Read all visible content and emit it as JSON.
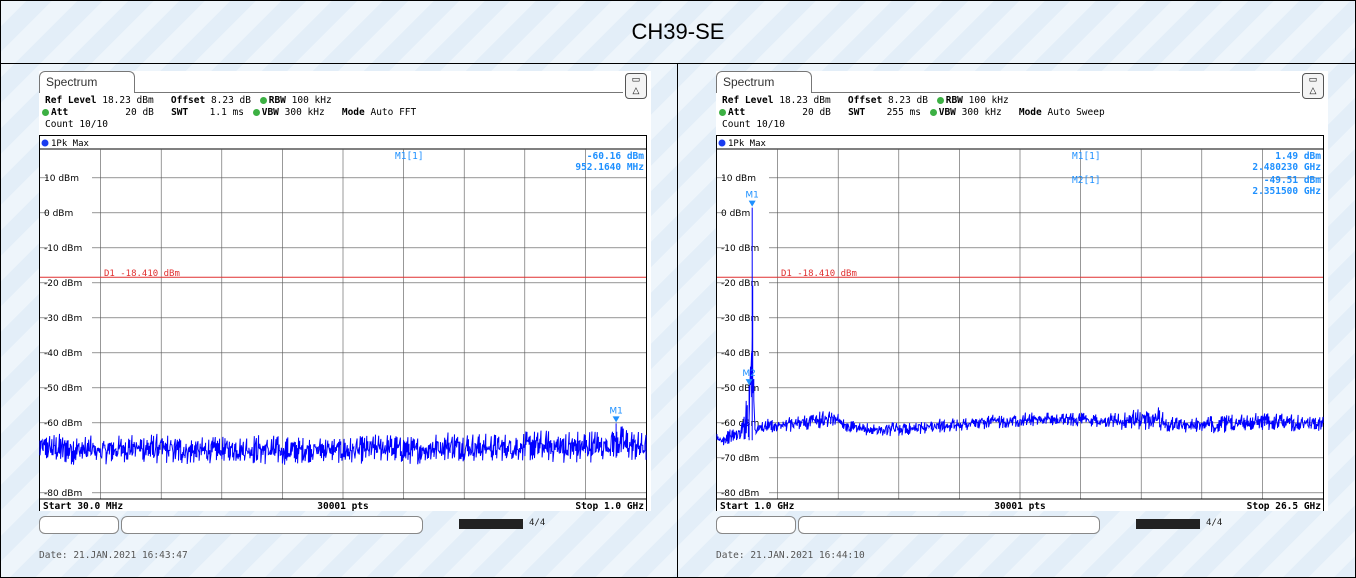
{
  "title": "CH39-SE",
  "panels": [
    {
      "tab": "Spectrum",
      "ref_level_label": "Ref Level",
      "ref_level": "18.23 dBm",
      "offset_label": "Offset",
      "offset": "8.23 dB",
      "rbw_label": "RBW",
      "rbw": "100 kHz",
      "att_label": "Att",
      "att": "20 dB",
      "swt_label": "SWT",
      "swt": "1.1 ms",
      "vbw_label": "VBW",
      "vbw": "300 kHz",
      "mode_label": "Mode",
      "mode": "Auto FFT",
      "count": "Count 10/10",
      "trace": "1Pk Max",
      "marker_rows": [
        {
          "name": "M1[1]",
          "level": "-60.16 dBm",
          "freq": "952.1640 MHz"
        }
      ],
      "line_label": "D1  -18.410 dBm",
      "start": "Start 30.0 MHz",
      "points": "30001 pts",
      "stop": "Stop 1.0 GHz",
      "date": "Date: 21.JAN.2021  16:43:47",
      "status_text": "4/4"
    },
    {
      "tab": "Spectrum",
      "ref_level_label": "Ref Level",
      "ref_level": "18.23 dBm",
      "offset_label": "Offset",
      "offset": "8.23 dB",
      "rbw_label": "RBW",
      "rbw": "100 kHz",
      "att_label": "Att",
      "att": "20 dB",
      "swt_label": "SWT",
      "swt": "255 ms",
      "vbw_label": "VBW",
      "vbw": "300 kHz",
      "mode_label": "Mode",
      "mode": "Auto Sweep",
      "count": "Count 10/10",
      "trace": "1Pk Max",
      "marker_rows": [
        {
          "name": "M1[1]",
          "level": "1.49 dBm",
          "freq": "2.480230 GHz"
        },
        {
          "name": "M2[1]",
          "level": "-49.51 dBm",
          "freq": "2.351500 GHz"
        }
      ],
      "line_label": "D1  -18.410 dBm",
      "start": "Start 1.0 GHz",
      "points": "30001 pts",
      "stop": "Stop 26.5 GHz",
      "date": "Date: 21.JAN.2021  16:44:10",
      "status_text": "4/4"
    }
  ],
  "chart_data": [
    {
      "type": "line",
      "title": "",
      "xlabel": "",
      "ylabel": "",
      "x_unit": "MHz",
      "xlim": [
        30.0,
        1000.0
      ],
      "ylim": [
        -81.77,
        18.23
      ],
      "y_ticks": [
        10,
        0,
        -10,
        -20,
        -30,
        -40,
        -50,
        -60,
        -80
      ],
      "y_tick_labels": [
        "10 dBm",
        "0 dBm",
        "-10 dBm",
        "-20 dBm",
        "-30 dBm",
        "-40 dBm",
        "-50 dBm",
        "-60 dBm",
        "-80 dBm"
      ],
      "grid": true,
      "threshold_line": {
        "label": "D1",
        "value": -18.41
      },
      "markers": [
        {
          "name": "M1",
          "x": 952.164,
          "y": -60.16
        }
      ],
      "series": [
        {
          "color": "#0000ff",
          "x": [
            30,
            80,
            130,
            180,
            230,
            280,
            330,
            380,
            430,
            480,
            530,
            580,
            630,
            680,
            730,
            780,
            830,
            880,
            930,
            952.164,
            980,
            1000
          ],
          "y_max": [
            -63,
            -63,
            -64,
            -63,
            -63,
            -64,
            -64,
            -63,
            -64,
            -64,
            -64,
            -63,
            -64,
            -62,
            -63,
            -63,
            -62,
            -62,
            -62,
            -60.16,
            -62,
            -63
          ],
          "y_min": [
            -71,
            -72,
            -72,
            -71,
            -72,
            -72,
            -71,
            -72,
            -72,
            -71,
            -72,
            -71,
            -72,
            -71,
            -71,
            -71,
            -71,
            -72,
            -71,
            -70,
            -71,
            -71
          ]
        }
      ]
    },
    {
      "type": "line",
      "title": "",
      "xlabel": "",
      "ylabel": "",
      "x_unit": "GHz",
      "xlim": [
        1.0,
        26.5
      ],
      "ylim": [
        -81.77,
        18.23
      ],
      "y_ticks": [
        10,
        0,
        -10,
        -20,
        -30,
        -40,
        -50,
        -60,
        -70,
        -80
      ],
      "y_tick_labels": [
        "10 dBm",
        "0 dBm",
        "-10 dBm",
        "-20 dBm",
        "-30 dBm",
        "-40 dBm",
        "-50 dBm",
        "-60 dBm",
        "-70 dBm",
        "-80 dBm"
      ],
      "grid": true,
      "threshold_line": {
        "label": "D1",
        "value": -18.41
      },
      "markers": [
        {
          "name": "M1",
          "x": 2.48023,
          "y": 1.49
        },
        {
          "name": "M2",
          "x": 2.3515,
          "y": -49.51
        }
      ],
      "series": [
        {
          "color": "#0000ff",
          "x": [
            1.0,
            1.5,
            2.0,
            2.3515,
            2.48023,
            2.6,
            3.0,
            4.0,
            5.0,
            6.0,
            6.5,
            7.0,
            8.0,
            10.0,
            12.0,
            14.0,
            16.0,
            18.0,
            19.5,
            20.0,
            22.0,
            24.0,
            26.5
          ],
          "y_max": [
            -63,
            -62,
            -61,
            -49.51,
            1.49,
            -60,
            -59,
            -58,
            -57,
            -56,
            -59,
            -60,
            -60,
            -59,
            -58,
            -57,
            -57,
            -57,
            -55,
            -58,
            -58,
            -57,
            -58
          ],
          "y_min": [
            -67,
            -66,
            -65,
            -65,
            -65,
            -64,
            -63,
            -63,
            -62,
            -61,
            -63,
            -64,
            -64,
            -63,
            -62,
            -61,
            -61,
            -62,
            -62,
            -63,
            -63,
            -62,
            -63
          ]
        }
      ]
    }
  ]
}
